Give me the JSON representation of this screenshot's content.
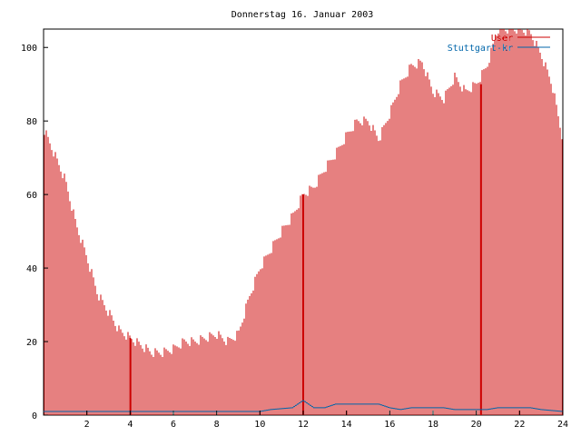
{
  "chart_data": {
    "type": "bar",
    "title": "Donnerstag 16. Januar 2003",
    "xlabel": "",
    "ylabel": "",
    "xlim": [
      0,
      24
    ],
    "ylim": [
      0,
      105
    ],
    "x_ticks": [
      "2",
      "4",
      "6",
      "8",
      "10",
      "12",
      "14",
      "16",
      "18",
      "20",
      "22",
      "24"
    ],
    "y_ticks": [
      "0",
      "20",
      "40",
      "60",
      "80",
      "100"
    ],
    "grid": false,
    "legend_position": "top-right",
    "series": [
      {
        "name": "User",
        "color": "#cc0000",
        "style": "impulses",
        "points": [
          [
            0.0,
            78
          ],
          [
            0.5,
            71
          ],
          [
            1.0,
            64
          ],
          [
            1.5,
            52
          ],
          [
            2.0,
            43
          ],
          [
            2.5,
            33
          ],
          [
            3.0,
            28
          ],
          [
            3.5,
            23
          ],
          [
            4.0,
            21
          ],
          [
            4.5,
            19
          ],
          [
            5.0,
            17
          ],
          [
            5.5,
            17
          ],
          [
            6.0,
            18
          ],
          [
            6.5,
            20
          ],
          [
            7.0,
            20
          ],
          [
            7.5,
            21
          ],
          [
            8.0,
            22
          ],
          [
            8.5,
            20
          ],
          [
            9.0,
            22
          ],
          [
            9.5,
            32
          ],
          [
            10.0,
            40
          ],
          [
            10.5,
            45
          ],
          [
            11.0,
            50
          ],
          [
            11.5,
            54
          ],
          [
            12.0,
            60
          ],
          [
            12.5,
            62
          ],
          [
            13.0,
            67
          ],
          [
            13.5,
            71
          ],
          [
            14.0,
            76
          ],
          [
            14.5,
            80
          ],
          [
            15.0,
            80
          ],
          [
            15.5,
            75
          ],
          [
            16.0,
            82
          ],
          [
            16.5,
            90
          ],
          [
            17.0,
            95
          ],
          [
            17.5,
            96
          ],
          [
            18.0,
            88
          ],
          [
            18.5,
            86
          ],
          [
            19.0,
            92
          ],
          [
            19.5,
            88
          ],
          [
            20.0,
            90
          ],
          [
            20.5,
            95
          ],
          [
            21.0,
            105
          ],
          [
            21.5,
            105
          ],
          [
            22.0,
            105
          ],
          [
            22.5,
            104
          ],
          [
            23.0,
            98
          ],
          [
            23.5,
            90
          ],
          [
            24.0,
            75
          ]
        ],
        "spikes": [
          {
            "x": 4.0,
            "y": 21
          },
          {
            "x": 12.0,
            "y": 60
          },
          {
            "x": 20.2,
            "y": 90
          }
        ]
      },
      {
        "name": "Stuttgart-kr",
        "color": "#0066aa",
        "style": "line",
        "points": [
          [
            0.0,
            1
          ],
          [
            10.0,
            1
          ],
          [
            10.5,
            1.5
          ],
          [
            11.5,
            2
          ],
          [
            12.0,
            4
          ],
          [
            12.5,
            2
          ],
          [
            13.0,
            2
          ],
          [
            13.5,
            3
          ],
          [
            15.5,
            3
          ],
          [
            16.0,
            2
          ],
          [
            16.5,
            1.5
          ],
          [
            17.0,
            2
          ],
          [
            18.5,
            2
          ],
          [
            19.0,
            1.5
          ],
          [
            20.5,
            1.5
          ],
          [
            21.0,
            2
          ],
          [
            22.5,
            2
          ],
          [
            23.0,
            1.5
          ],
          [
            24.0,
            1
          ]
        ]
      }
    ]
  }
}
